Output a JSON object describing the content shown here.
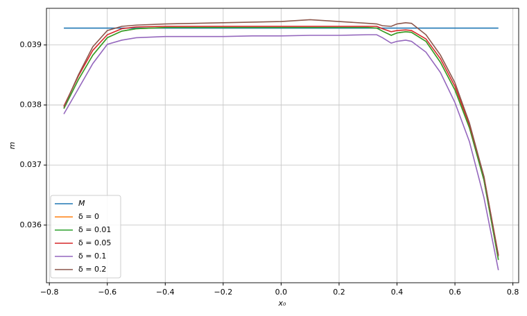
{
  "chart_data": {
    "type": "line",
    "xlabel": "x₀",
    "ylabel": "m",
    "x": [
      -0.75,
      -0.7,
      -0.65,
      -0.6,
      -0.55,
      -0.5,
      -0.4,
      -0.3,
      -0.2,
      -0.1,
      0,
      0.1,
      0.2,
      0.3,
      0.33,
      0.35,
      0.38,
      0.4,
      0.43,
      0.45,
      0.5,
      0.55,
      0.6,
      0.65,
      0.7,
      0.75
    ],
    "series": [
      {
        "name": "M",
        "color": "#1f77b4",
        "values": [
          0.03928,
          0.03928,
          0.03928,
          0.03928,
          0.03928,
          0.03928,
          0.03928,
          0.03928,
          0.03928,
          0.03928,
          0.03928,
          0.03928,
          0.03928,
          0.03928,
          0.03928,
          0.03928,
          0.03928,
          0.03928,
          0.03928,
          0.03928,
          0.03928,
          0.03928,
          0.03928,
          0.03928,
          0.03928,
          0.03928
        ]
      },
      {
        "name": "δ = 0",
        "color": "#ff7f0e",
        "values": [
          0.03794,
          0.03842,
          0.03883,
          0.03912,
          0.03923,
          0.03927,
          0.03929,
          0.03929,
          0.03929,
          0.03929,
          0.03929,
          0.03929,
          0.03929,
          0.03929,
          0.03928,
          0.03923,
          0.03916,
          0.0392,
          0.03922,
          0.03921,
          0.03906,
          0.03871,
          0.03825,
          0.03762,
          0.03675,
          0.03542
        ]
      },
      {
        "name": "δ = 0.01",
        "color": "#2ca02c",
        "values": [
          0.03794,
          0.03842,
          0.03883,
          0.03912,
          0.03923,
          0.03927,
          0.03929,
          0.03929,
          0.03929,
          0.03929,
          0.03929,
          0.03929,
          0.03929,
          0.03929,
          0.03928,
          0.03923,
          0.03916,
          0.0392,
          0.03922,
          0.03921,
          0.03906,
          0.03871,
          0.03825,
          0.03762,
          0.03675,
          0.03542
        ]
      },
      {
        "name": "δ = 0.05",
        "color": "#d62728",
        "values": [
          0.03798,
          0.03848,
          0.03891,
          0.03917,
          0.03927,
          0.0393,
          0.03931,
          0.03931,
          0.03931,
          0.03931,
          0.03931,
          0.03931,
          0.03931,
          0.03931,
          0.03931,
          0.03927,
          0.03922,
          0.03924,
          0.03925,
          0.03924,
          0.0391,
          0.03877,
          0.03831,
          0.03767,
          0.03681,
          0.0355
        ]
      },
      {
        "name": "δ = 0.1",
        "color": "#9467bd",
        "values": [
          0.03785,
          0.03827,
          0.03869,
          0.03901,
          0.03908,
          0.03912,
          0.03914,
          0.03914,
          0.03914,
          0.03915,
          0.03915,
          0.03916,
          0.03916,
          0.03917,
          0.03917,
          0.03912,
          0.03903,
          0.03906,
          0.03908,
          0.03906,
          0.03888,
          0.03854,
          0.03804,
          0.03739,
          0.03646,
          0.03525
        ]
      },
      {
        "name": "δ = 0.2",
        "color": "#8c564b",
        "values": [
          0.03796,
          0.0385,
          0.03897,
          0.03924,
          0.03931,
          0.03933,
          0.03935,
          0.03936,
          0.03937,
          0.03938,
          0.03939,
          0.03942,
          0.03939,
          0.03936,
          0.03935,
          0.03932,
          0.03931,
          0.03935,
          0.03937,
          0.03936,
          0.03917,
          0.03883,
          0.03837,
          0.0377,
          0.03681,
          0.03548
        ]
      }
    ],
    "xlim": [
      -0.81,
      0.82
    ],
    "xticks": [
      {
        "value": -0.8,
        "label": "−0.8"
      },
      {
        "value": -0.6,
        "label": "−0.6"
      },
      {
        "value": -0.4,
        "label": "−0.4"
      },
      {
        "value": -0.2,
        "label": "−0.2"
      },
      {
        "value": 0,
        "label": "0.0"
      },
      0.2,
      0.4,
      0.6,
      0.8
    ],
    "ylim": [
      0.03504,
      0.03961
    ],
    "yticks": [
      0.036,
      0.037,
      0.038,
      0.039
    ],
    "grid": true,
    "legend": "lower left"
  }
}
